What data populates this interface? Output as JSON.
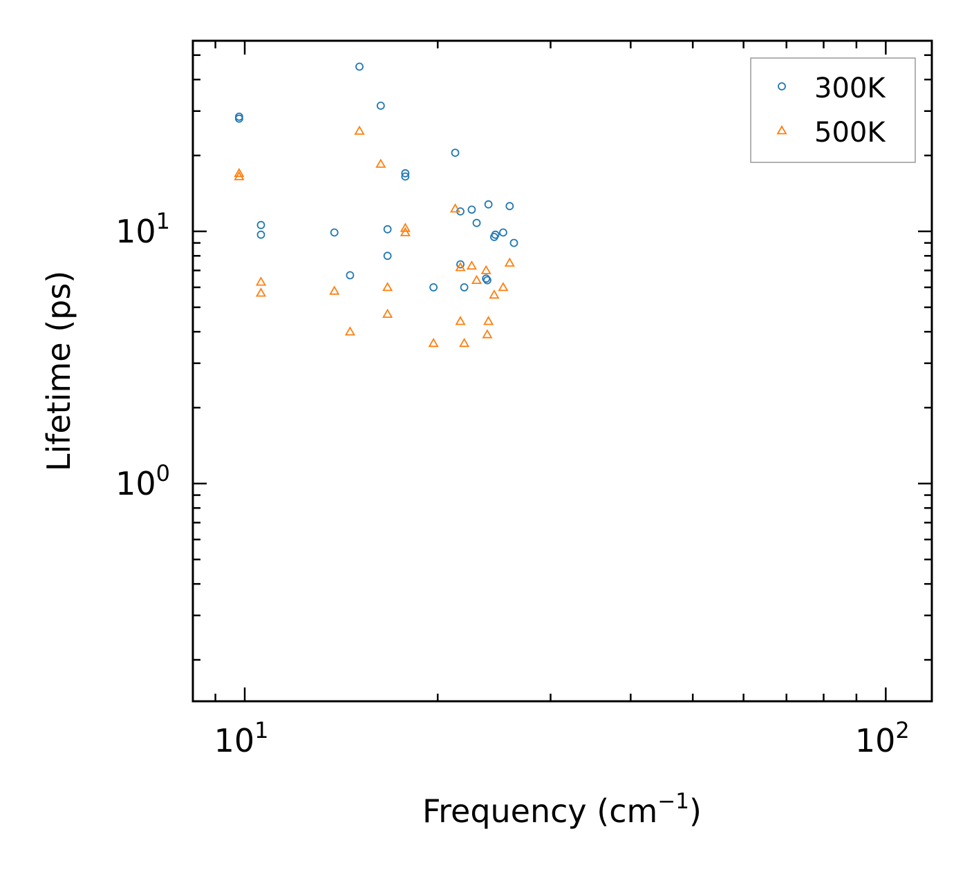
{
  "chart_data": {
    "type": "scatter",
    "title": "",
    "xlabel": "Frequency",
    "xlabel_unit": "cm",
    "xlabel_exp": "−1",
    "ylabel": "Lifetime (ps)",
    "xscale": "log",
    "yscale": "log",
    "xlim": [
      8.3,
      118
    ],
    "ylim": [
      0.137,
      57
    ],
    "x_ticks": [
      {
        "value": 10,
        "base": "10",
        "exp": "1"
      },
      {
        "value": 100,
        "base": "10",
        "exp": "2"
      }
    ],
    "y_ticks": [
      {
        "value": 1,
        "base": "10",
        "exp": "0"
      },
      {
        "value": 10,
        "base": "10",
        "exp": "1"
      }
    ],
    "legend_position": "top-right",
    "series": [
      {
        "name": "300K",
        "marker": "circle",
        "color": "#1f77b4",
        "points": [
          [
            9.8,
            28.5
          ],
          [
            9.8,
            28.0
          ],
          [
            10.6,
            10.6
          ],
          [
            10.6,
            9.7
          ],
          [
            13.8,
            9.9
          ],
          [
            14.6,
            6.7
          ],
          [
            15.1,
            45
          ],
          [
            16.3,
            31.5
          ],
          [
            16.7,
            10.2
          ],
          [
            16.7,
            8.0
          ],
          [
            17.8,
            17.0
          ],
          [
            17.8,
            16.5
          ],
          [
            19.7,
            6.0
          ],
          [
            21.3,
            20.5
          ],
          [
            21.7,
            12.0
          ],
          [
            21.7,
            7.4
          ],
          [
            22.0,
            6.0
          ],
          [
            22.6,
            12.2
          ],
          [
            23.0,
            10.8
          ],
          [
            23.8,
            6.5
          ],
          [
            23.9,
            6.4
          ],
          [
            24.0,
            12.8
          ],
          [
            24.5,
            9.5
          ],
          [
            24.6,
            9.7
          ],
          [
            25.3,
            9.9
          ],
          [
            25.9,
            12.6
          ],
          [
            26.3,
            9.0
          ]
        ]
      },
      {
        "name": "500K",
        "marker": "triangle",
        "color": "#ff7f0e",
        "points": [
          [
            9.8,
            17.0
          ],
          [
            9.8,
            16.5
          ],
          [
            10.6,
            6.3
          ],
          [
            10.6,
            5.7
          ],
          [
            13.8,
            5.8
          ],
          [
            14.6,
            4.0
          ],
          [
            15.1,
            25.0
          ],
          [
            16.3,
            18.5
          ],
          [
            16.7,
            6.0
          ],
          [
            16.7,
            4.7
          ],
          [
            17.8,
            10.3
          ],
          [
            17.8,
            9.9
          ],
          [
            19.7,
            3.6
          ],
          [
            21.3,
            12.3
          ],
          [
            21.7,
            7.2
          ],
          [
            21.7,
            4.4
          ],
          [
            22.0,
            3.6
          ],
          [
            22.6,
            7.3
          ],
          [
            23.0,
            6.4
          ],
          [
            23.8,
            7.0
          ],
          [
            23.9,
            3.9
          ],
          [
            24.0,
            4.4
          ],
          [
            24.5,
            5.6
          ],
          [
            25.3,
            6.0
          ],
          [
            25.9,
            7.5
          ]
        ]
      }
    ]
  }
}
